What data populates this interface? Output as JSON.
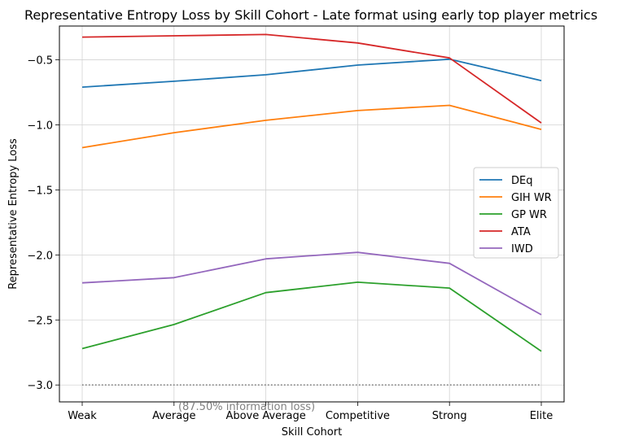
{
  "chart_data": {
    "type": "line",
    "title": "Representative Entropy Loss by Skill Cohort - Late format using early top player metrics",
    "xlabel": "Skill Cohort",
    "ylabel": "Representative Entropy Loss",
    "categories": [
      "Weak",
      "Average",
      "Above Average",
      "Competitive",
      "Strong",
      "Elite"
    ],
    "ylim": [
      -3.13,
      -0.24
    ],
    "yticks": [
      -3.0,
      -2.5,
      -2.0,
      -1.5,
      -1.0,
      -0.5
    ],
    "ytick_labels": [
      "−3.0",
      "−2.5",
      "−2.0",
      "−1.5",
      "−1.0",
      "−0.5"
    ],
    "grid": true,
    "legend_position": "center-right",
    "series": [
      {
        "name": "DEq",
        "color": "#1f77b4",
        "values": [
          -0.71,
          -0.665,
          -0.615,
          -0.54,
          -0.495,
          -0.66
        ]
      },
      {
        "name": "GIH WR",
        "color": "#ff7f0e",
        "values": [
          -1.175,
          -1.06,
          -0.965,
          -0.89,
          -0.85,
          -1.035
        ]
      },
      {
        "name": "GP WR",
        "color": "#2ca02c",
        "values": [
          -2.72,
          -2.535,
          -2.29,
          -2.21,
          -2.255,
          -2.74
        ]
      },
      {
        "name": "ATA",
        "color": "#d62728",
        "values": [
          -0.325,
          -0.315,
          -0.305,
          -0.37,
          -0.485,
          -0.985
        ]
      },
      {
        "name": "IWD",
        "color": "#9467bd",
        "values": [
          -2.215,
          -2.175,
          -2.03,
          -1.98,
          -2.065,
          -2.46
        ]
      }
    ],
    "reference_line": {
      "y": -3.0,
      "color": "#808080",
      "style": "dotted"
    },
    "annotation": "(87.50% information loss)"
  }
}
